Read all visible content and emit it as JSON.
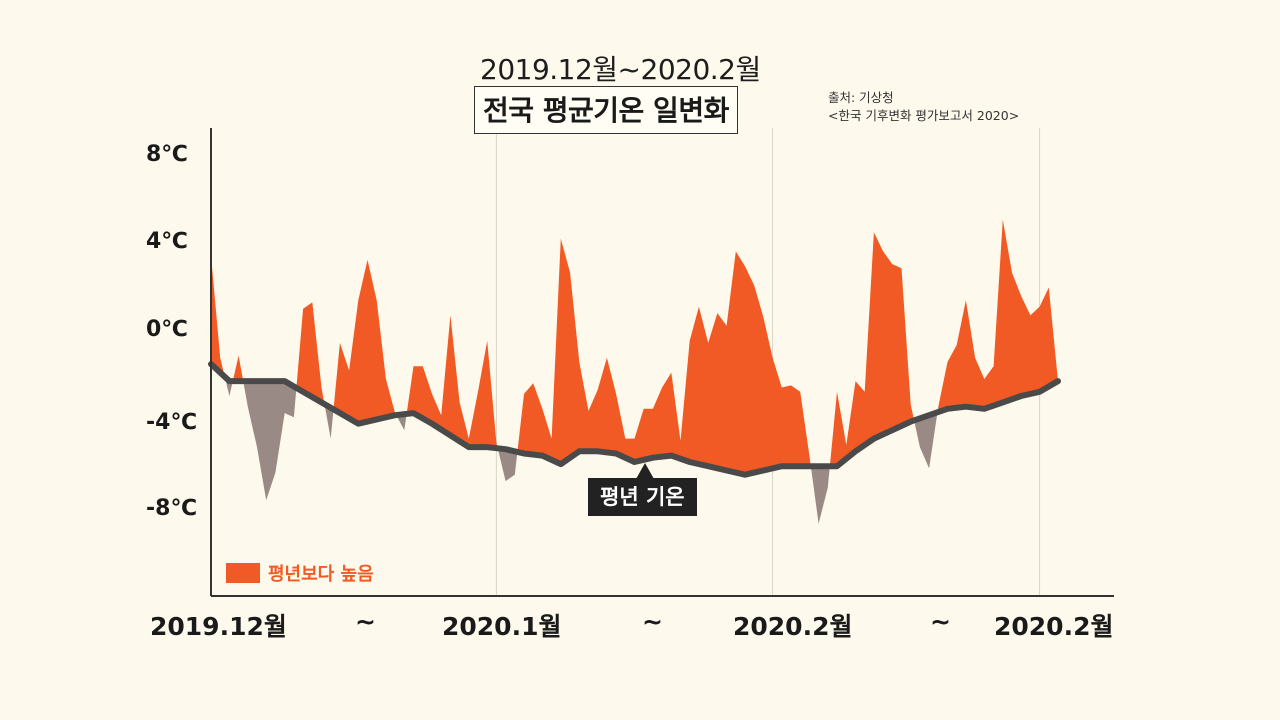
{
  "chart_data": {
    "type": "area",
    "subtitle": "2019.12월~2020.2월",
    "title": "전국 평균기온 일변화",
    "source_lines": [
      "출처: 기상청",
      "<한국 기후변화 평가보고서 2020>"
    ],
    "ylim": [
      -12,
      10
    ],
    "y_ticks": [
      "8℃",
      "4℃",
      "0℃",
      "-4℃",
      "-8℃"
    ],
    "y_tick_values": [
      8,
      4,
      0,
      -4,
      -8
    ],
    "x_labels": [
      "2019.12월",
      "~",
      "2020.1월",
      "~",
      "2020.2월",
      "~",
      "2020.2월"
    ],
    "grid": true,
    "legend": {
      "label": "평년보다 높음",
      "position": "bottom-left"
    },
    "callout_label": "평년 기온",
    "colors": {
      "above": "#f15a24",
      "below": "#9a8a86",
      "normal_line": "#4a4a4a"
    },
    "x_range": [
      0,
      92
    ],
    "series": [
      {
        "x": [
          0,
          1,
          2,
          3,
          4,
          5,
          6,
          7,
          8,
          9,
          10,
          11,
          12,
          13,
          14,
          15,
          16,
          17,
          18,
          19,
          20,
          21,
          22,
          23,
          24,
          25,
          26,
          27,
          28,
          29,
          30,
          31,
          32,
          33,
          34,
          35,
          36,
          37,
          38,
          39,
          40,
          41,
          42,
          43,
          44,
          45,
          46,
          47,
          48,
          49,
          50,
          51,
          52,
          53,
          54,
          55,
          56,
          57,
          58,
          59,
          60,
          61,
          62,
          63,
          64,
          65,
          66,
          67,
          68,
          69,
          70,
          71,
          72,
          73,
          74,
          75,
          76,
          77,
          78,
          79,
          80,
          81,
          82,
          83,
          84,
          85,
          86,
          87,
          88,
          89,
          90,
          91,
          92
        ],
        "values": [
          4,
          -0.8,
          -2.6,
          -0.7,
          -3.1,
          -5,
          -7.5,
          -6.2,
          -3.4,
          -3.6,
          1.5,
          1.8,
          -2.2,
          -4.6,
          -0.1,
          -1.4,
          1.9,
          3.8,
          1.9,
          -1.8,
          -3.4,
          -4.2,
          -1.2,
          -1.2,
          -2.5,
          -3.5,
          1.2,
          -2.9,
          -4.6,
          -2.4,
          0,
          -4.8,
          -6.6,
          -6.3,
          -2.5,
          -2,
          -3.2,
          -4.6,
          4.8,
          3.2,
          -1,
          -3.3,
          -2.3,
          -0.8,
          -2.5,
          -4.6,
          -4.6,
          -3.2,
          -3.2,
          -2.2,
          -1.5,
          -4.7,
          0,
          1.6,
          -0.1,
          1.3,
          0.7,
          4.2,
          3.5,
          2.6,
          1.1,
          -0.8,
          -2.2,
          -2.1,
          -2.4,
          -5.4,
          -8.6,
          -6.9,
          -2.4,
          -4.9,
          -1.9,
          -2.4,
          5.1,
          4.2,
          3.6,
          3.4,
          -3,
          -5,
          -6,
          -3.1,
          -1,
          -0.2,
          1.9,
          -0.8,
          -1.8,
          -1.2,
          5.7,
          3.2,
          2.1,
          1.2,
          1.6,
          2.5,
          null
        ]
      },
      {
        "x": [
          0,
          2,
          4,
          6,
          8,
          10,
          12,
          16,
          18,
          20,
          22,
          24,
          28,
          30,
          32,
          34,
          36,
          38,
          40,
          42,
          44,
          46,
          48,
          50,
          52,
          54,
          56,
          58,
          62,
          64,
          66,
          68,
          70,
          72,
          74,
          76,
          78,
          80,
          82,
          84,
          86,
          88,
          90,
          92
        ],
        "values": [
          -1.1,
          -1.9,
          -1.9,
          -1.9,
          -1.9,
          -2.4,
          -2.9,
          -3.9,
          -3.7,
          -3.5,
          -3.4,
          -3.9,
          -5,
          -5,
          -5.1,
          -5.3,
          -5.4,
          -5.8,
          -5.2,
          -5.2,
          -5.3,
          -5.7,
          -5.5,
          -5.4,
          -5.7,
          -5.9,
          -6.1,
          -6.3,
          -5.9,
          -5.9,
          -5.9,
          -5.9,
          -5.2,
          -4.6,
          -4.2,
          -3.8,
          -3.5,
          -3.2,
          -3.1,
          -3.2,
          -2.9,
          -2.6,
          -2.4,
          -1.9
        ]
      }
    ]
  }
}
